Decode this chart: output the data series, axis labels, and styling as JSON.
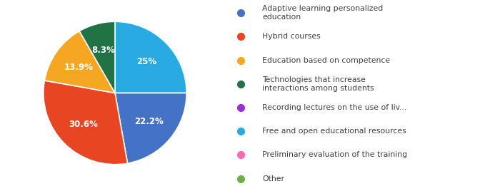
{
  "values": [
    25.0,
    22.2,
    30.6,
    13.9,
    8.3
  ],
  "colors": [
    "#29ABE2",
    "#4472C4",
    "#E84523",
    "#F5A623",
    "#217346"
  ],
  "autopct_labels": [
    "25%",
    "22.2%",
    "30.6%",
    "13.9%",
    "8.3%"
  ],
  "legend_entries": [
    {
      "label": "Adaptive learning personalized\neducation",
      "color": "#4472C4"
    },
    {
      "label": "Hybrid courses",
      "color": "#E84523"
    },
    {
      "label": "Education based on competence",
      "color": "#F5A623"
    },
    {
      "label": "Technologies that increase\ninteractions among students",
      "color": "#217346"
    },
    {
      "label": "Recording lectures on the use of liv...",
      "color": "#9B30D0"
    },
    {
      "label": "Free and open educational resources",
      "color": "#29ABE2"
    },
    {
      "label": "Preliminary evaluation of the training",
      "color": "#FF69B4"
    },
    {
      "label": "Other",
      "color": "#70AD47"
    }
  ],
  "background_color": "#ffffff",
  "text_color": "#404040",
  "startangle": 90
}
